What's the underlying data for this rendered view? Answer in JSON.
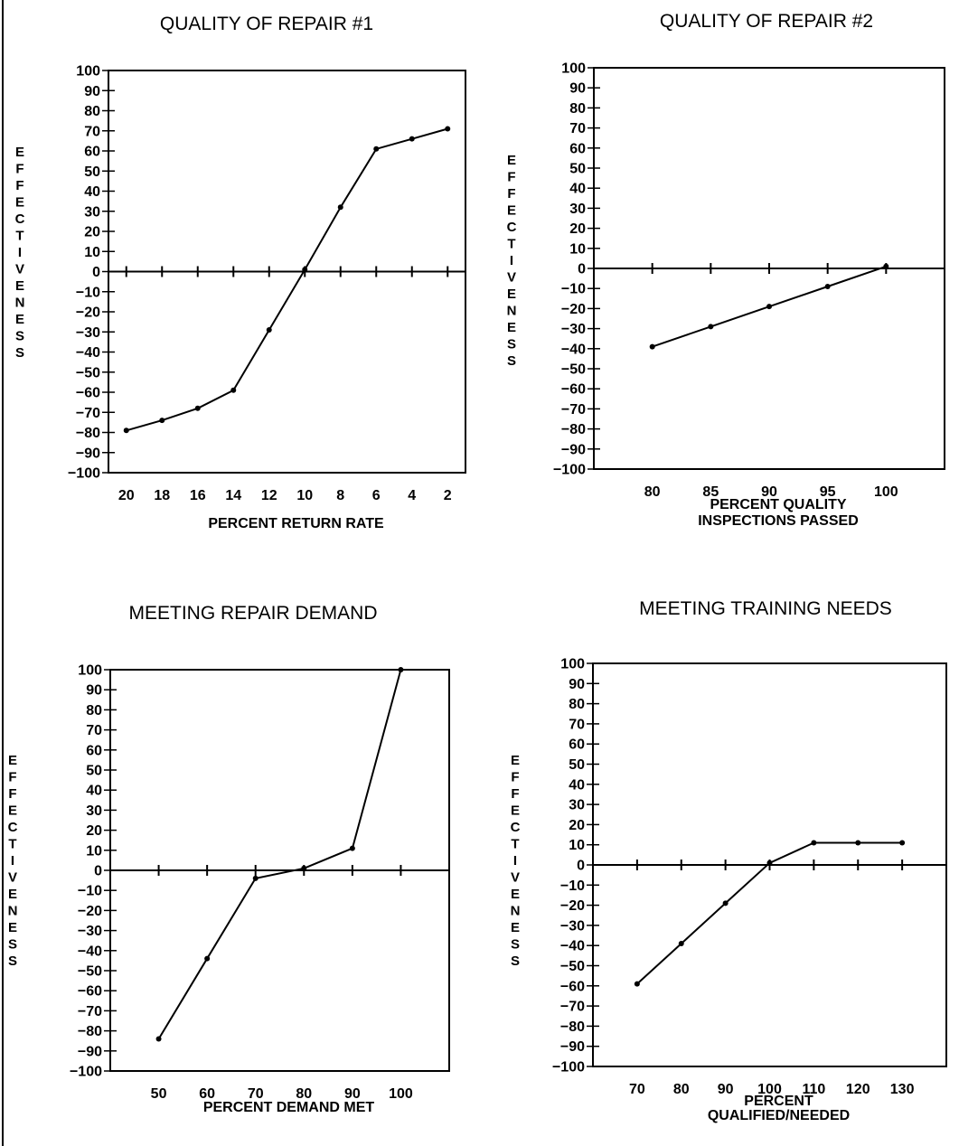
{
  "chart_data": [
    {
      "type": "line",
      "title": "QUALITY OF REPAIR #1",
      "xlabel": [
        "PERCENT RETURN RATE"
      ],
      "ylabel": "EFFECTIVENESS",
      "ylim": [
        -100,
        100
      ],
      "ytick_step": 10,
      "xlim": [
        21,
        1
      ],
      "xticks": [
        20,
        18,
        16,
        14,
        12,
        10,
        8,
        6,
        4,
        2
      ],
      "xtick_labels": [
        "20",
        "18",
        "16",
        "14",
        "12",
        "10",
        "8",
        "6",
        "4",
        "2"
      ],
      "x": [
        20,
        18,
        16,
        14,
        12,
        10,
        8,
        6,
        4,
        2
      ],
      "values": [
        -79,
        -74,
        -68,
        -59,
        -29,
        1,
        32,
        61,
        66,
        71
      ]
    },
    {
      "type": "line",
      "title": "QUALITY OF REPAIR #2",
      "xlabel": [
        "PERCENT QUALITY",
        "INSPECTIONS PASSED"
      ],
      "ylabel": "EFFECTIVENESS",
      "ylim": [
        -100,
        100
      ],
      "ytick_step": 10,
      "xlim": [
        75,
        105
      ],
      "xticks": [
        80,
        85,
        90,
        95,
        100
      ],
      "xtick_labels": [
        "80",
        "85",
        "90",
        "95",
        "100"
      ],
      "x": [
        80,
        85,
        90,
        95,
        100
      ],
      "values": [
        -39,
        -29,
        -19,
        -9,
        1
      ]
    },
    {
      "type": "line",
      "title": "MEETING REPAIR DEMAND",
      "xlabel": [
        "PERCENT DEMAND MET"
      ],
      "ylabel": "EFFECTIVENESS",
      "ylim": [
        -100,
        100
      ],
      "ytick_step": 10,
      "xlim": [
        40,
        110
      ],
      "xticks": [
        50,
        60,
        70,
        80,
        90,
        100
      ],
      "xtick_labels": [
        "50",
        "60",
        "70",
        "80",
        "90",
        "100"
      ],
      "x": [
        50,
        60,
        70,
        80,
        90,
        100
      ],
      "values": [
        -84,
        -44,
        -4,
        1,
        11,
        100
      ]
    },
    {
      "type": "line",
      "title": "MEETING TRAINING NEEDS",
      "xlabel": [
        "PERCENT",
        "QUALIFIED/NEEDED"
      ],
      "ylabel": "EFFECTIVENESS",
      "ylim": [
        -100,
        100
      ],
      "ytick_step": 10,
      "xlim": [
        60,
        140
      ],
      "xticks": [
        70,
        80,
        90,
        100,
        110,
        120,
        130
      ],
      "xtick_labels": [
        "70",
        "80",
        "90",
        "100",
        "110",
        "120",
        "130"
      ],
      "x": [
        70,
        80,
        90,
        100,
        110,
        120,
        130
      ],
      "values": [
        -59,
        -39,
        -19,
        1,
        11,
        11,
        11
      ]
    }
  ]
}
